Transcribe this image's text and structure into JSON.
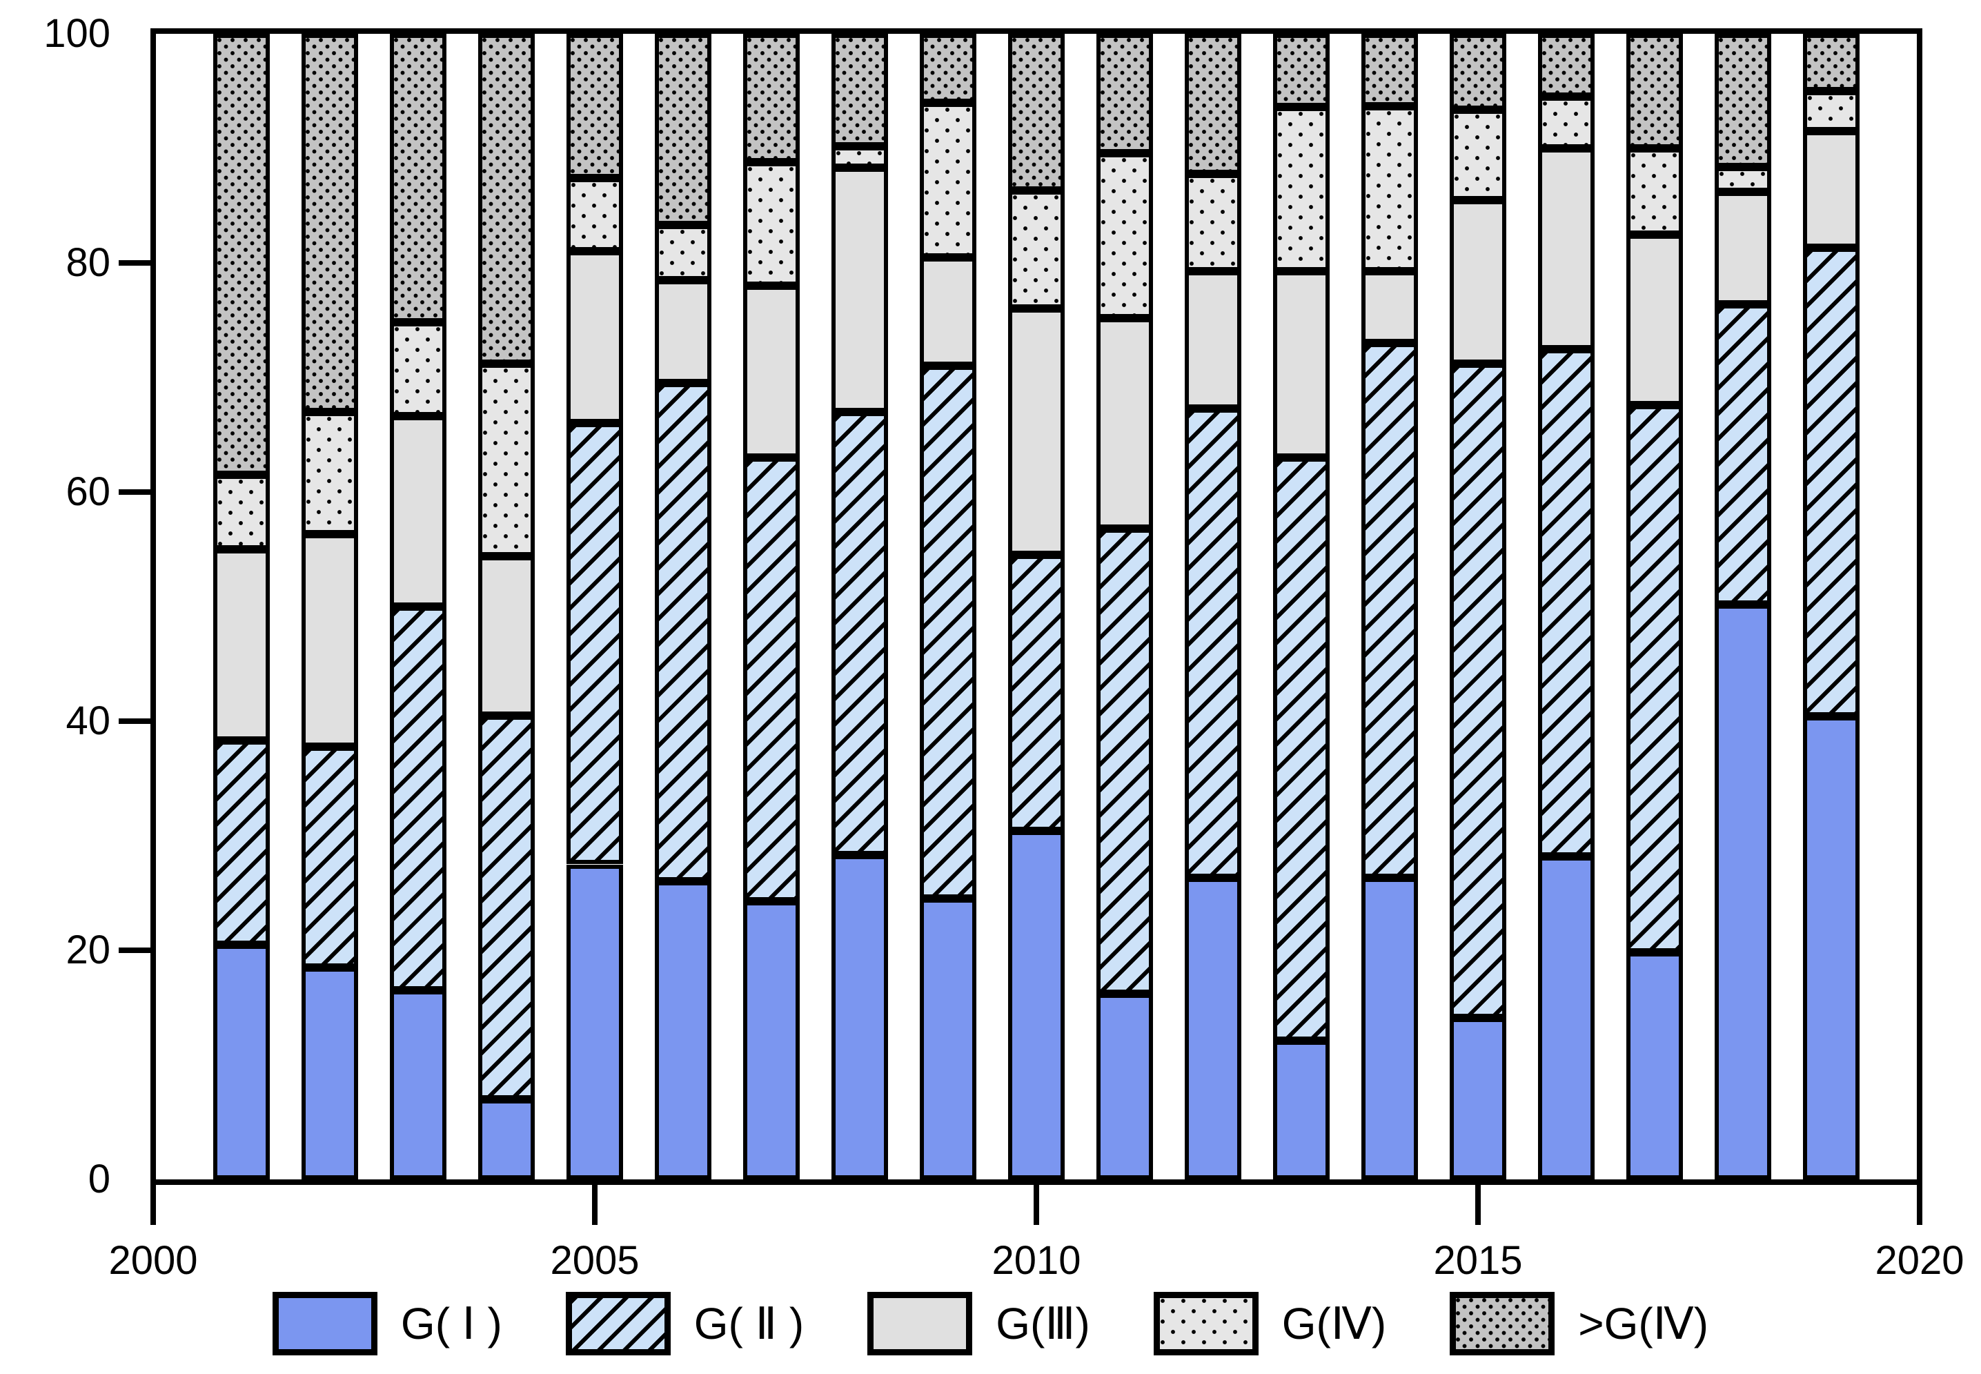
{
  "chart_data": {
    "type": "bar",
    "stacked": true,
    "title": "",
    "xlabel": "",
    "ylabel": "",
    "categories": [
      2001,
      2002,
      2003,
      2004,
      2005,
      2006,
      2007,
      2008,
      2009,
      2010,
      2011,
      2012,
      2013,
      2014,
      2015,
      2016,
      2017,
      2018,
      2019
    ],
    "series": [
      {
        "name": "G( Ⅰ )",
        "key": "g1",
        "values": [
          20.5,
          18.5,
          16.5,
          7.0,
          27.5,
          26.0,
          24.3,
          28.3,
          24.5,
          30.4,
          16.2,
          26.3,
          12.1,
          26.3,
          14.1,
          28.2,
          19.8,
          50.2,
          40.4
        ]
      },
      {
        "name": "G( Ⅱ )",
        "key": "g2",
        "values": [
          17.8,
          19.3,
          33.5,
          33.5,
          38.5,
          43.5,
          38.7,
          38.7,
          46.5,
          24.1,
          40.6,
          41.0,
          50.9,
          46.7,
          57.1,
          44.3,
          47.8,
          26.2,
          40.9
        ]
      },
      {
        "name": "G(Ⅲ)",
        "key": "g3",
        "values": [
          16.7,
          18.5,
          16.6,
          13.9,
          15.0,
          9.0,
          15.0,
          21.3,
          9.5,
          21.5,
          18.4,
          12.0,
          16.3,
          6.3,
          14.3,
          17.5,
          14.9,
          9.8,
          10.2
        ]
      },
      {
        "name": "G(Ⅳ)",
        "key": "g4",
        "values": [
          6.5,
          10.7,
          8.2,
          16.8,
          6.4,
          4.8,
          10.8,
          1.9,
          13.5,
          10.3,
          14.4,
          8.5,
          14.3,
          14.4,
          7.9,
          4.5,
          7.5,
          2.2,
          3.5
        ]
      },
      {
        "name": ">G(Ⅳ)",
        "key": "g5",
        "values": [
          38.5,
          33.0,
          25.2,
          28.8,
          12.6,
          16.7,
          11.2,
          9.8,
          6.0,
          13.7,
          10.4,
          12.2,
          6.4,
          6.3,
          6.6,
          5.5,
          10.0,
          11.6,
          5.0
        ]
      }
    ],
    "x_ticks": [
      "2000",
      "2005",
      "2010",
      "2015",
      "2020"
    ],
    "y_ticks": [
      "0",
      "20",
      "40",
      "60",
      "80",
      "100"
    ],
    "xlim": [
      2000,
      2020
    ],
    "ylim": [
      0,
      100
    ],
    "grid": false,
    "legend_position": "bottom"
  },
  "colors": {
    "g1_fill": "#7b96f0",
    "g2_fill": "#cde2f8",
    "g2_hatch": "#000000",
    "g3_fill": "#e0e0e0",
    "g4_fill": "#e6e6e6",
    "g5_fill": "#c3c3c3",
    "dot_color": "#000000",
    "axis": "#000000",
    "background": "#ffffff"
  }
}
